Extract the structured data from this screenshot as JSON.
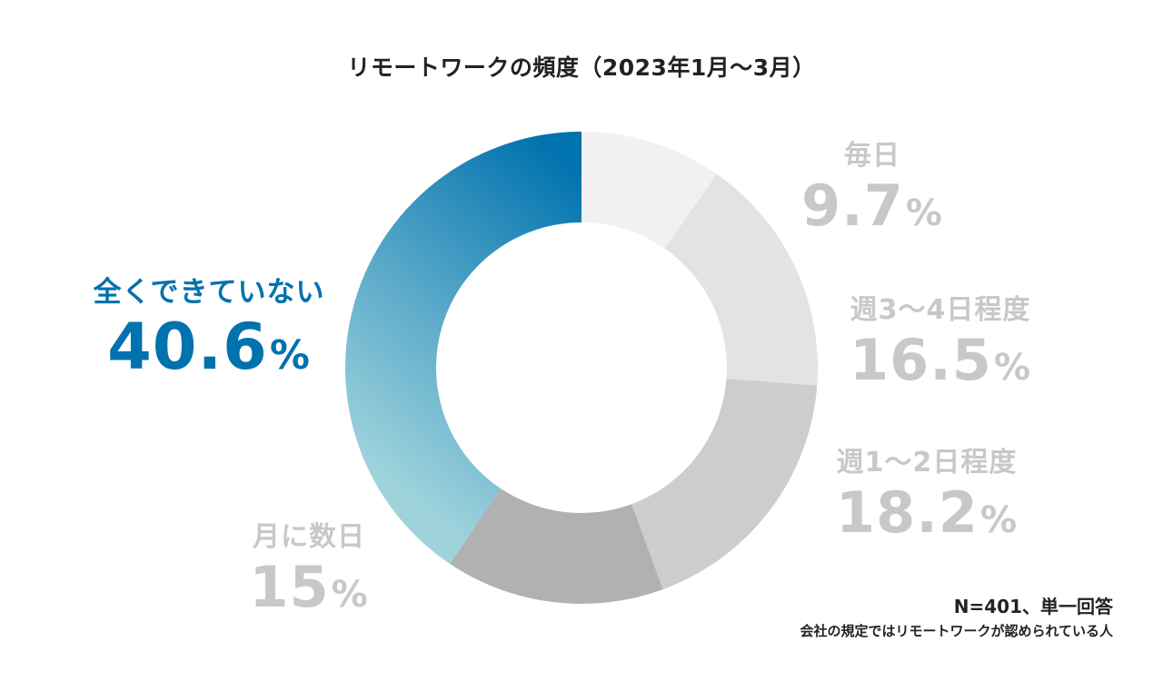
{
  "chart_data": {
    "type": "pie",
    "title": "リモートワークの頻度（2023年1月〜3月）",
    "unit": "%",
    "slices": [
      {
        "label": "毎日",
        "value": 9.7,
        "display": "9.7",
        "color": "#f1f1f1"
      },
      {
        "label": "週3〜4日程度",
        "value": 16.5,
        "display": "16.5",
        "color": "#e3e3e3"
      },
      {
        "label": "週1〜2日程度",
        "value": 18.2,
        "display": "18.2",
        "color": "#cdcdcd"
      },
      {
        "label": "月に数日",
        "value": 15,
        "display": "15",
        "color": "#b1b1b1"
      },
      {
        "label": "全くできていない",
        "value": 40.6,
        "display": "40.6",
        "color_start": "#0072ae",
        "color_end": "#9ed3dc"
      }
    ]
  },
  "footnote": {
    "sample": "N=401、単一回答",
    "scope": "会社の規定ではリモートワークが認められている人"
  }
}
